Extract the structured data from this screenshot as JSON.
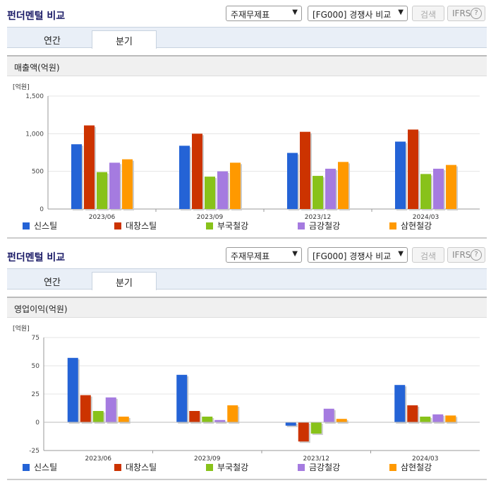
{
  "panels": [
    {
      "title": "펀더멘털 비교",
      "select1": "주재무제표",
      "select2": "[FG000] 경쟁사 비교",
      "search_button": "검색",
      "ifrs_label": "IFRS",
      "help_icon": "?",
      "tabs": [
        "연간",
        "분기"
      ],
      "active_tab": 1,
      "section_label": "매출액(억원)"
    },
    {
      "title": "펀더멘털 비교",
      "select1": "주재무제표",
      "select2": "[FG000] 경쟁사 비교",
      "search_button": "검색",
      "ifrs_label": "IFRS",
      "help_icon": "?",
      "tabs": [
        "연간",
        "분기"
      ],
      "active_tab": 1,
      "section_label": "영업이익(억원)"
    }
  ],
  "colors": [
    "#2463d6",
    "#cc3300",
    "#88c21a",
    "#a57be0",
    "#ff9900"
  ],
  "chart_data": [
    {
      "type": "bar",
      "unit_label": "[억원]",
      "categories": [
        "2023/06",
        "2023/09",
        "2023/12",
        "2024/03"
      ],
      "ylim": [
        0,
        1500
      ],
      "yticks": [
        0,
        500,
        1000,
        1500
      ],
      "ytick_labels": [
        "0",
        "500",
        "1,000",
        "1,500"
      ],
      "grid": true,
      "legend": "bottom",
      "series": [
        {
          "name": "신스틸",
          "values": [
            860,
            840,
            745,
            895
          ]
        },
        {
          "name": "대창스틸",
          "values": [
            1110,
            1000,
            1025,
            1055
          ]
        },
        {
          "name": "부국철강",
          "values": [
            490,
            430,
            440,
            465
          ]
        },
        {
          "name": "금강철강",
          "values": [
            615,
            500,
            535,
            535
          ]
        },
        {
          "name": "삼현철강",
          "values": [
            660,
            615,
            625,
            585
          ]
        }
      ]
    },
    {
      "type": "bar",
      "unit_label": "[억원]",
      "categories": [
        "2023/06",
        "2023/09",
        "2023/12",
        "2024/03"
      ],
      "ylim": [
        -25,
        75
      ],
      "yticks": [
        -25,
        0,
        25,
        50,
        75
      ],
      "ytick_labels": [
        "-25",
        "0",
        "25",
        "50",
        "75"
      ],
      "grid": true,
      "legend": "bottom",
      "series": [
        {
          "name": "신스틸",
          "values": [
            57,
            42,
            -3,
            33
          ]
        },
        {
          "name": "대창스틸",
          "values": [
            24,
            10,
            -17,
            15
          ]
        },
        {
          "name": "부국철강",
          "values": [
            10,
            5,
            -10,
            5
          ]
        },
        {
          "name": "금강철강",
          "values": [
            22,
            2,
            12,
            7
          ]
        },
        {
          "name": "삼현철강",
          "values": [
            5,
            15,
            3,
            6
          ]
        }
      ]
    }
  ]
}
